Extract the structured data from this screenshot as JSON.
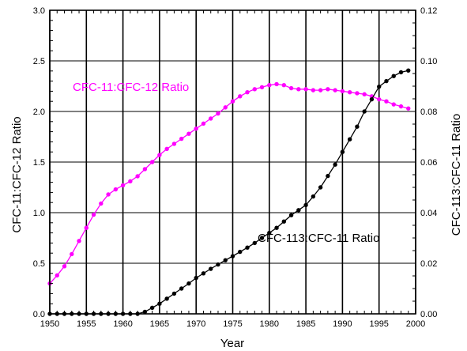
{
  "chart_data": {
    "type": "line",
    "xlabel": "Year",
    "ylabel_left": "CFC-11:CFC-12 Ratio",
    "ylabel_right": "CFC-113:CFC-11 Ratio",
    "xlim": [
      1950,
      2000
    ],
    "ylim_left": [
      0,
      3.0
    ],
    "ylim_right": [
      0,
      0.12
    ],
    "x_ticks": [
      "1950",
      "1955",
      "1960",
      "1965",
      "1970",
      "1975",
      "1980",
      "1985",
      "1990",
      "1995",
      "2000"
    ],
    "y_left_ticks": [
      "0.0",
      "0.5",
      "1.0",
      "1.5",
      "2.0",
      "2.5",
      "3.0"
    ],
    "y_right_ticks": [
      "0.00",
      "0.02",
      "0.04",
      "0.06",
      "0.08",
      "0.10",
      "0.12"
    ],
    "grid": "vertical lines at x ticks, horizontal lines at left-axis ticks",
    "series": [
      {
        "name": "CFC-11:CFC-12 Ratio",
        "axis": "left",
        "color": "#ff00ff",
        "x": [
          1950,
          1951,
          1952,
          1953,
          1954,
          1955,
          1956,
          1957,
          1958,
          1959,
          1960,
          1961,
          1962,
          1963,
          1964,
          1965,
          1966,
          1967,
          1968,
          1969,
          1970,
          1971,
          1972,
          1973,
          1974,
          1975,
          1976,
          1977,
          1978,
          1979,
          1980,
          1981,
          1982,
          1983,
          1984,
          1985,
          1986,
          1987,
          1988,
          1989,
          1990,
          1991,
          1992,
          1993,
          1994,
          1995,
          1996,
          1997,
          1998,
          1999
        ],
        "values": [
          0.3,
          0.38,
          0.47,
          0.59,
          0.72,
          0.85,
          0.98,
          1.09,
          1.18,
          1.23,
          1.27,
          1.31,
          1.36,
          1.43,
          1.5,
          1.57,
          1.63,
          1.68,
          1.73,
          1.78,
          1.83,
          1.88,
          1.93,
          1.98,
          2.04,
          2.1,
          2.15,
          2.19,
          2.22,
          2.24,
          2.26,
          2.27,
          2.26,
          2.23,
          2.22,
          2.22,
          2.21,
          2.21,
          2.22,
          2.21,
          2.2,
          2.19,
          2.18,
          2.17,
          2.15,
          2.12,
          2.1,
          2.07,
          2.05,
          2.03
        ]
      },
      {
        "name": "CFC-113:CFC-11 Ratio",
        "axis": "right",
        "color": "#000000",
        "x": [
          1950,
          1951,
          1952,
          1953,
          1954,
          1955,
          1956,
          1957,
          1958,
          1959,
          1960,
          1961,
          1962,
          1963,
          1964,
          1965,
          1966,
          1967,
          1968,
          1969,
          1970,
          1971,
          1972,
          1973,
          1974,
          1975,
          1976,
          1977,
          1978,
          1979,
          1980,
          1981,
          1982,
          1983,
          1984,
          1985,
          1986,
          1987,
          1988,
          1989,
          1990,
          1991,
          1992,
          1993,
          1994,
          1995,
          1996,
          1997,
          1998,
          1999
        ],
        "values": [
          0.0,
          0.0,
          0.0,
          0.0,
          0.0,
          0.0,
          0.0,
          0.0,
          0.0,
          0.0,
          0.0,
          0.0,
          0.0,
          0.0008,
          0.0024,
          0.004,
          0.006,
          0.008,
          0.01,
          0.012,
          0.0142,
          0.016,
          0.0178,
          0.0195,
          0.0212,
          0.0228,
          0.0245,
          0.0262,
          0.028,
          0.03,
          0.032,
          0.034,
          0.0365,
          0.039,
          0.041,
          0.043,
          0.0464,
          0.05,
          0.0545,
          0.059,
          0.064,
          0.069,
          0.074,
          0.08,
          0.0848,
          0.0898,
          0.092,
          0.094,
          0.0955,
          0.0962
        ]
      }
    ]
  }
}
